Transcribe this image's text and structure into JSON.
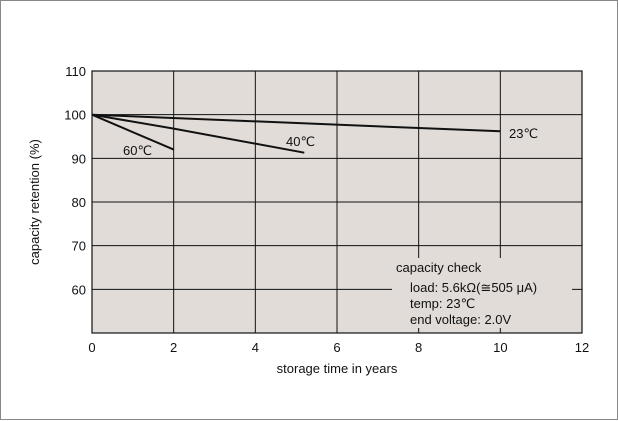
{
  "chart_data": {
    "type": "line",
    "xlabel": "storage time in years",
    "ylabel": "capacity retention (%)",
    "xlim": [
      0,
      12
    ],
    "ylim": [
      50,
      110
    ],
    "x_ticks": [
      "0",
      "2",
      "4",
      "6",
      "8",
      "10",
      "12"
    ],
    "y_ticks": [
      "110",
      "100",
      "90",
      "80",
      "70",
      "60"
    ],
    "grid": true,
    "background_color": "#e1dcd8",
    "series": [
      {
        "name": "60℃",
        "points": [
          [
            0,
            100
          ],
          [
            2,
            92
          ]
        ]
      },
      {
        "name": "40℃",
        "points": [
          [
            0,
            100
          ],
          [
            2,
            96.8
          ],
          [
            5.2,
            91.3
          ]
        ]
      },
      {
        "name": "23℃",
        "points": [
          [
            0,
            100
          ],
          [
            10,
            96.2
          ]
        ]
      }
    ],
    "annotation": {
      "title": "capacity check",
      "lines": [
        "load: 5.6kΩ(≅505 μA)",
        "temp: 23℃",
        "end voltage: 2.0V"
      ]
    }
  }
}
